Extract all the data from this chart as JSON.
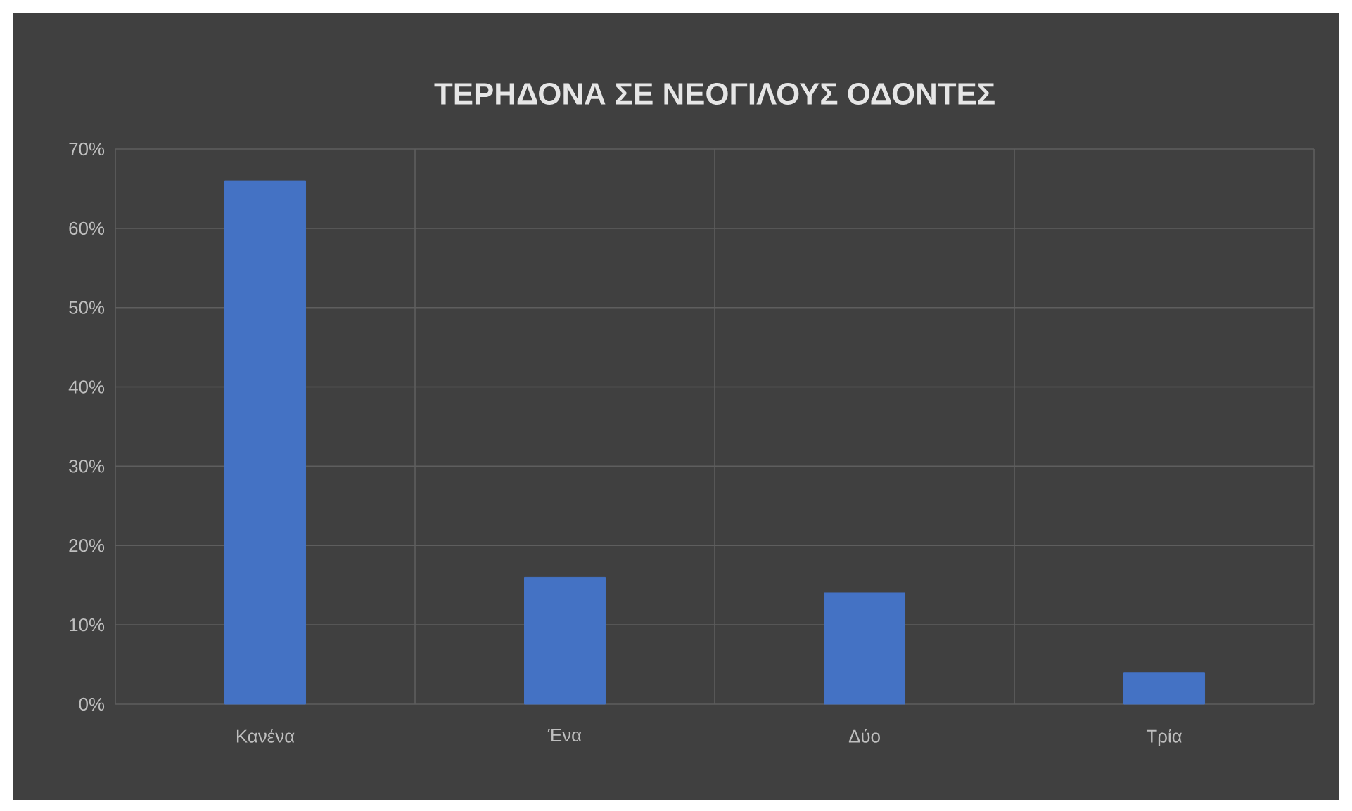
{
  "chart_data": {
    "type": "bar",
    "title": "ΤΕΡΗΔΟΝΑ ΣΕ ΝΕΟΓΙΛΟΥΣ ΟΔΟΝΤΕΣ",
    "categories": [
      "Κανένα",
      "Ένα",
      "Δύο",
      "Τρία"
    ],
    "values": [
      66,
      16,
      14,
      4
    ],
    "color": "#4472c4",
    "ylim": [
      0,
      70
    ],
    "yticks": [
      {
        "value": 0,
        "label": "0%"
      },
      {
        "value": 10,
        "label": "10%"
      },
      {
        "value": 20,
        "label": "20%"
      },
      {
        "value": 30,
        "label": "30%"
      },
      {
        "value": 40,
        "label": "40%"
      },
      {
        "value": 50,
        "label": "50%"
      },
      {
        "value": 60,
        "label": "60%"
      },
      {
        "value": 70,
        "label": "70%"
      }
    ],
    "grid": true
  }
}
